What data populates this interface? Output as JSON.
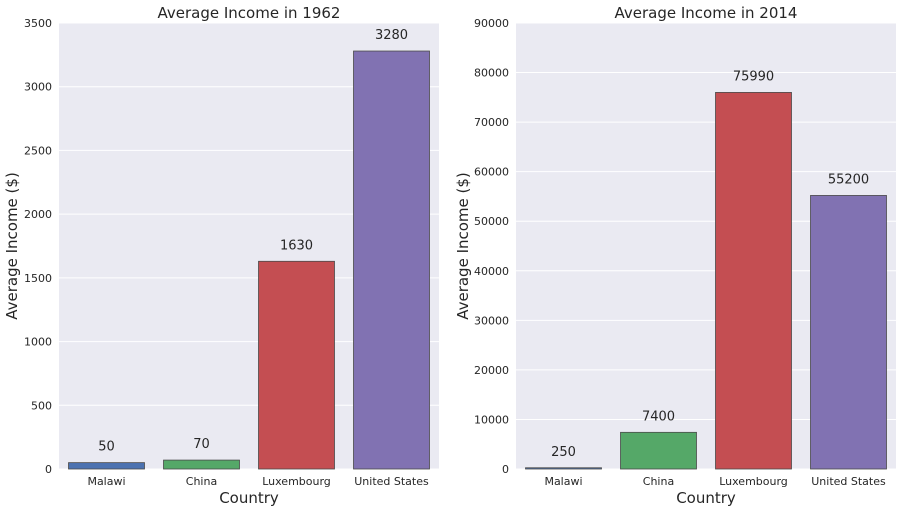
{
  "chart_data": [
    {
      "type": "bar",
      "title": "Average Income in 1962",
      "xlabel": "Country",
      "ylabel": "Average Income ($)",
      "categories": [
        "Malawi",
        "China",
        "Luxembourg",
        "United States"
      ],
      "values": [
        50,
        70,
        1630,
        3280
      ],
      "data_labels": [
        "50",
        "70",
        "1630",
        "3280"
      ],
      "colors": [
        "#4c72b0",
        "#55a868",
        "#c44e52",
        "#8172b2"
      ],
      "ylim": [
        0,
        3500
      ],
      "yticks": [
        0,
        500,
        1000,
        1500,
        2000,
        2500,
        3000,
        3500
      ],
      "ytick_labels": [
        "0",
        "500",
        "1000",
        "1500",
        "2000",
        "2500",
        "3000",
        "3500"
      ],
      "grid": true
    },
    {
      "type": "bar",
      "title": "Average Income in 2014",
      "xlabel": "Country",
      "ylabel": "Average Income ($)",
      "categories": [
        "Malawi",
        "China",
        "Luxembourg",
        "United States"
      ],
      "values": [
        250,
        7400,
        75990,
        55200
      ],
      "data_labels": [
        "250",
        "7400",
        "75990",
        "55200"
      ],
      "colors": [
        "#4c72b0",
        "#55a868",
        "#c44e52",
        "#8172b2"
      ],
      "ylim": [
        0,
        90000
      ],
      "yticks": [
        0,
        10000,
        20000,
        30000,
        40000,
        50000,
        60000,
        70000,
        80000,
        90000
      ],
      "ytick_labels": [
        "0",
        "10000",
        "20000",
        "30000",
        "40000",
        "50000",
        "60000",
        "70000",
        "80000",
        "90000"
      ],
      "grid": true
    }
  ]
}
